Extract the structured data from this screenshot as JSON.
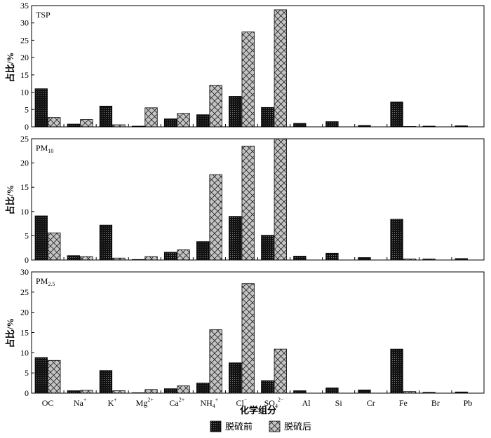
{
  "chart_data": {
    "type": "bar",
    "xlabel": "化学组分",
    "ylabel": "占比/%",
    "categories": [
      {
        "base": "OC",
        "sup": "",
        "sub": ""
      },
      {
        "base": "Na",
        "sup": "+",
        "sub": ""
      },
      {
        "base": "K",
        "sup": "+",
        "sub": ""
      },
      {
        "base": "Mg",
        "sup": "2+",
        "sub": ""
      },
      {
        "base": "Ca",
        "sup": "2+",
        "sub": ""
      },
      {
        "base": "NH",
        "sup": "+",
        "sub": "4"
      },
      {
        "base": "Cl",
        "sup": "−",
        "sub": ""
      },
      {
        "base": "SO",
        "sup": "2−",
        "sub": "4"
      },
      {
        "base": "Al",
        "sup": "",
        "sub": ""
      },
      {
        "base": "Si",
        "sup": "",
        "sub": ""
      },
      {
        "base": "Cr",
        "sup": "",
        "sub": ""
      },
      {
        "base": "Fe",
        "sup": "",
        "sub": ""
      },
      {
        "base": "Br",
        "sup": "",
        "sub": ""
      },
      {
        "base": "Pb",
        "sup": "",
        "sub": ""
      }
    ],
    "legend": {
      "placement": "bottom-center",
      "items": [
        {
          "label": "脱硫前",
          "fill": "dense-black-dots"
        },
        {
          "label": "脱硫后",
          "fill": "grey-crosshatch"
        }
      ]
    },
    "panels": [
      {
        "label": {
          "base": "TSP",
          "sub": ""
        },
        "ylim": [
          0,
          35
        ],
        "yticks": [
          0,
          5,
          10,
          15,
          20,
          25,
          30,
          35
        ],
        "series": [
          {
            "name": "脱硫前",
            "values": [
              11.0,
              0.8,
              6.0,
              0.2,
              2.3,
              3.5,
              8.8,
              5.6,
              1.0,
              1.5,
              0.4,
              7.2,
              0.2,
              0.3
            ]
          },
          {
            "name": "脱硫后",
            "values": [
              2.7,
              2.1,
              0.6,
              5.5,
              3.9,
              12.0,
              27.4,
              33.8,
              0.0,
              0.0,
              0.0,
              0.1,
              0.0,
              0.0
            ]
          }
        ]
      },
      {
        "label": {
          "base": "PM",
          "sub": "10"
        },
        "ylim": [
          0,
          25
        ],
        "yticks": [
          0,
          5,
          10,
          15,
          20,
          25
        ],
        "series": [
          {
            "name": "脱硫前",
            "values": [
              9.1,
              0.9,
              7.2,
              0.1,
              1.6,
              3.8,
              9.0,
              5.1,
              0.8,
              1.4,
              0.5,
              8.4,
              0.2,
              0.3
            ]
          },
          {
            "name": "脱硫后",
            "values": [
              5.6,
              0.7,
              0.4,
              0.7,
              2.1,
              17.6,
              23.5,
              25.0,
              0.0,
              0.0,
              0.0,
              0.2,
              0.0,
              0.0
            ]
          }
        ]
      },
      {
        "label": {
          "base": "PM",
          "sub": "2.5"
        },
        "ylim": [
          0,
          30
        ],
        "yticks": [
          0,
          5,
          10,
          15,
          20,
          25,
          30
        ],
        "series": [
          {
            "name": "脱硫前",
            "values": [
              8.8,
              0.6,
              5.6,
              0.1,
              1.1,
              2.5,
              7.5,
              3.1,
              0.6,
              1.3,
              0.8,
              10.9,
              0.2,
              0.3
            ]
          },
          {
            "name": "脱硫后",
            "values": [
              8.1,
              0.7,
              0.6,
              0.9,
              1.8,
              15.7,
              27.1,
              10.9,
              0.0,
              0.0,
              0.0,
              0.4,
              0.0,
              0.0
            ]
          }
        ]
      }
    ]
  }
}
